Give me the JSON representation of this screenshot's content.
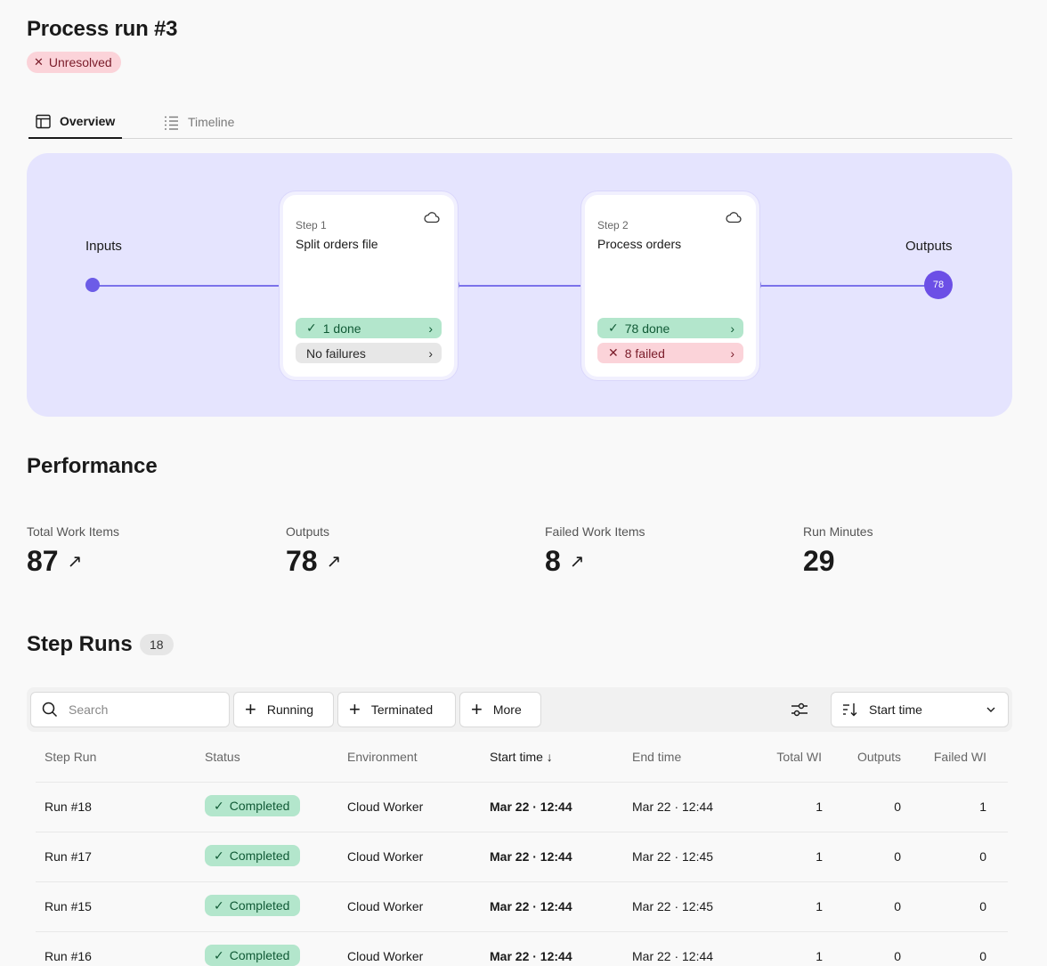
{
  "page": {
    "title": "Process run #3",
    "status": "Unresolved"
  },
  "tabs": [
    {
      "label": "Overview",
      "active": true
    },
    {
      "label": "Timeline",
      "active": false
    }
  ],
  "flow": {
    "inputs_label": "Inputs",
    "outputs_label": "Outputs",
    "outputs_count": "78",
    "steps": [
      {
        "step_no": "Step 1",
        "name": "Split orders file",
        "done": "1 done",
        "failures": "No failures"
      },
      {
        "step_no": "Step 2",
        "name": "Process orders",
        "done": "78 done",
        "failures": "8 failed"
      }
    ]
  },
  "performance": {
    "title": "Performance",
    "metrics": [
      {
        "label": "Total Work Items",
        "value": "87"
      },
      {
        "label": "Outputs",
        "value": "78"
      },
      {
        "label": "Failed Work Items",
        "value": "8"
      },
      {
        "label": "Run Minutes",
        "value": "29"
      }
    ]
  },
  "step_runs": {
    "title": "Step Runs",
    "count": "18",
    "search_placeholder": "Search",
    "filters": [
      "Running",
      "Terminated",
      "More"
    ],
    "sort_label": "Start time",
    "columns": [
      "Step Run",
      "Status",
      "Environment",
      "Start time",
      "End time",
      "Total WI",
      "Outputs",
      "Failed WI"
    ],
    "rows": [
      {
        "run": "Run #18",
        "status": "Completed",
        "env": "Cloud Worker",
        "start": "Mar 22 · 12:44",
        "end": "Mar 22 · 12:44",
        "total": "1",
        "outputs": "0",
        "failed": "1"
      },
      {
        "run": "Run #17",
        "status": "Completed",
        "env": "Cloud Worker",
        "start": "Mar 22 · 12:44",
        "end": "Mar 22 · 12:45",
        "total": "1",
        "outputs": "0",
        "failed": "0"
      },
      {
        "run": "Run #15",
        "status": "Completed",
        "env": "Cloud Worker",
        "start": "Mar 22 · 12:44",
        "end": "Mar 22 · 12:45",
        "total": "1",
        "outputs": "0",
        "failed": "0"
      },
      {
        "run": "Run #16",
        "status": "Completed",
        "env": "Cloud Worker",
        "start": "Mar 22 · 12:44",
        "end": "Mar 22 · 12:44",
        "total": "1",
        "outputs": "0",
        "failed": "0"
      }
    ]
  },
  "colors": {
    "accent": "#6c5ce7",
    "flow_bg": "#e5e4fe",
    "success_bg": "#b3e6cc",
    "error_bg": "#fbd3d9"
  }
}
